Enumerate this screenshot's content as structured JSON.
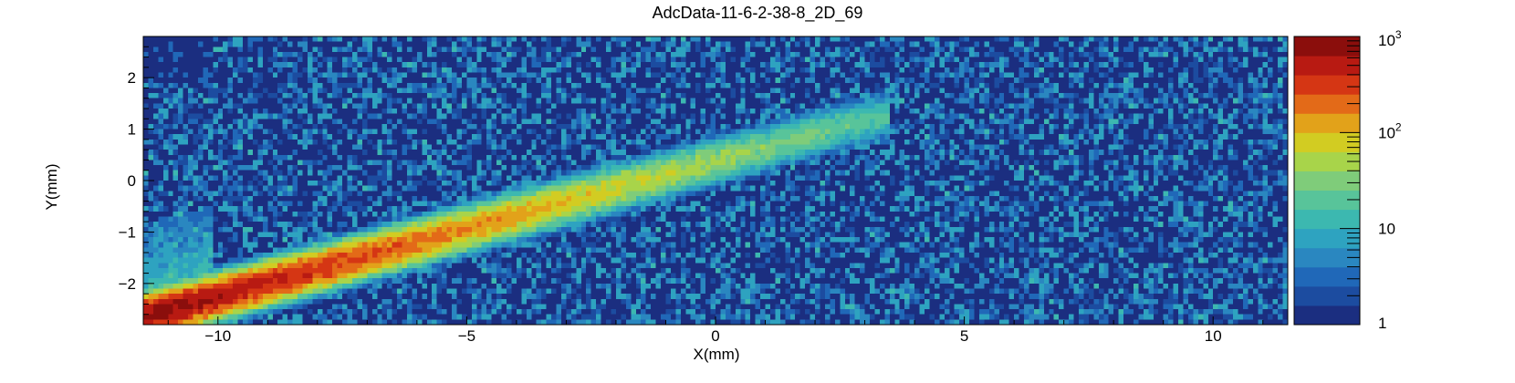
{
  "chart_data": {
    "type": "heatmap",
    "title": "AdcData-11-6-2-38-8_2D_69",
    "xlabel": "X(mm)",
    "ylabel": "Y(mm)",
    "xlim": [
      -11.5,
      11.5
    ],
    "ylim": [
      -2.8,
      2.8
    ],
    "x_ticks": [
      -10,
      -5,
      0,
      5,
      10
    ],
    "x_tick_labels": [
      "−10",
      "−5",
      "0",
      "5",
      "10"
    ],
    "y_ticks": [
      -2,
      -1,
      0,
      1,
      2
    ],
    "y_tick_labels": [
      "−2",
      "−1",
      "0",
      "1",
      "2"
    ],
    "z_scale": "log",
    "zlim": [
      1,
      1000
    ],
    "colorbar_ticks": [
      1,
      10,
      100,
      1000
    ],
    "colorbar_labels": [
      {
        "base": "1",
        "exp": ""
      },
      {
        "base": "10",
        "exp": ""
      },
      {
        "base": "10",
        "exp": "2"
      },
      {
        "base": "10",
        "exp": "3"
      }
    ],
    "features": {
      "track": {
        "start": [
          -11.5,
          -2.65
        ],
        "end": [
          2.0,
          0.9
        ],
        "peak_counts": 1000
      },
      "low_occupancy_region": {
        "x": [
          -11.5,
          -10.1
        ],
        "y": [
          1.9,
          2.8
        ]
      },
      "background_counts": [
        1,
        10
      ]
    },
    "colormap": [
      "#1b2e80",
      "#1c4ca0",
      "#2068b8",
      "#2a87c0",
      "#2ea3c0",
      "#3cb8b0",
      "#58c49a",
      "#7fcc7a",
      "#a8d44a",
      "#d2cc22",
      "#e2a21a",
      "#e36a18",
      "#d53614",
      "#b81a12",
      "#8b0e0c"
    ]
  }
}
